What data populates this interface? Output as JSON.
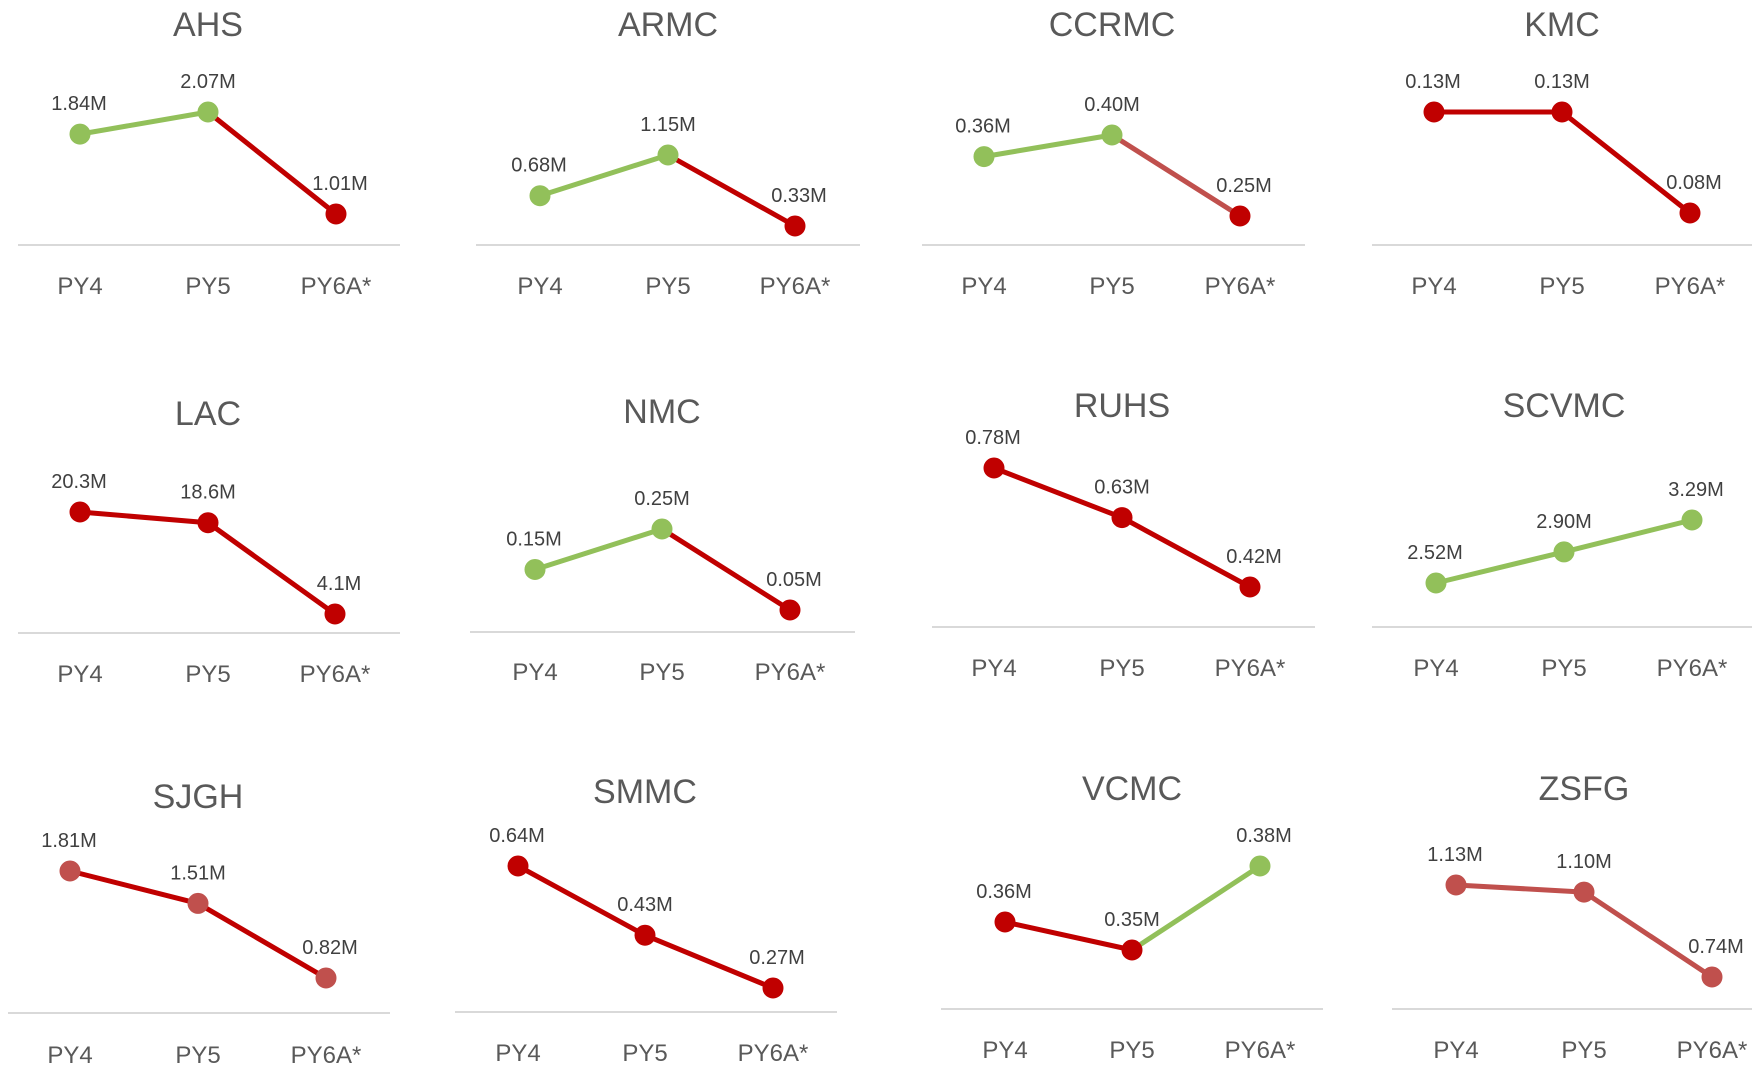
{
  "colors": {
    "up": "#92c05a",
    "down": "#c00000",
    "down_light": "#c0504d",
    "axis": "#d9d9d9",
    "text": "#595959"
  },
  "chart_data": [
    {
      "type": "line",
      "title": "AHS",
      "categories": [
        "PY4",
        "PY5",
        "PY6A*"
      ],
      "values": [
        1.84,
        2.07,
        1.01
      ],
      "labels": [
        "1.84M",
        "2.07M",
        "1.01M"
      ],
      "segment_colors": [
        "up",
        "down"
      ],
      "marker_colors": [
        "up",
        "up",
        "down"
      ]
    },
    {
      "type": "line",
      "title": "ARMC",
      "categories": [
        "PY4",
        "PY5",
        "PY6A*"
      ],
      "values": [
        0.68,
        1.15,
        0.33
      ],
      "labels": [
        "0.68M",
        "1.15M",
        "0.33M"
      ],
      "segment_colors": [
        "up",
        "down"
      ],
      "marker_colors": [
        "up",
        "up",
        "down"
      ]
    },
    {
      "type": "line",
      "title": "CCRMC",
      "categories": [
        "PY4",
        "PY5",
        "PY6A*"
      ],
      "values": [
        0.36,
        0.4,
        0.25
      ],
      "labels": [
        "0.36M",
        "0.40M",
        "0.25M"
      ],
      "segment_colors": [
        "up",
        "down_light"
      ],
      "marker_colors": [
        "up",
        "up",
        "down"
      ]
    },
    {
      "type": "line",
      "title": "KMC",
      "categories": [
        "PY4",
        "PY5",
        "PY6A*"
      ],
      "values": [
        0.13,
        0.13,
        0.08
      ],
      "labels": [
        "0.13M",
        "0.13M",
        "0.08M"
      ],
      "segment_colors": [
        "down",
        "down"
      ],
      "marker_colors": [
        "down",
        "down",
        "down"
      ]
    },
    {
      "type": "line",
      "title": "LAC",
      "categories": [
        "PY4",
        "PY5",
        "PY6A*"
      ],
      "values": [
        20.3,
        18.6,
        4.1
      ],
      "labels": [
        "20.3M",
        "18.6M",
        "4.1M"
      ],
      "segment_colors": [
        "down",
        "down"
      ],
      "marker_colors": [
        "down",
        "down",
        "down"
      ]
    },
    {
      "type": "line",
      "title": "NMC",
      "categories": [
        "PY4",
        "PY5",
        "PY6A*"
      ],
      "values": [
        0.15,
        0.25,
        0.05
      ],
      "labels": [
        "0.15M",
        "0.25M",
        "0.05M"
      ],
      "segment_colors": [
        "up",
        "down"
      ],
      "marker_colors": [
        "up",
        "up",
        "down"
      ]
    },
    {
      "type": "line",
      "title": "RUHS",
      "categories": [
        "PY4",
        "PY5",
        "PY6A*"
      ],
      "values": [
        0.78,
        0.63,
        0.42
      ],
      "labels": [
        "0.78M",
        "0.63M",
        "0.42M"
      ],
      "segment_colors": [
        "down",
        "down"
      ],
      "marker_colors": [
        "down",
        "down",
        "down"
      ]
    },
    {
      "type": "line",
      "title": "SCVMC",
      "categories": [
        "PY4",
        "PY5",
        "PY6A*"
      ],
      "values": [
        2.52,
        2.9,
        3.29
      ],
      "labels": [
        "2.52M",
        "2.90M",
        "3.29M"
      ],
      "segment_colors": [
        "up",
        "up"
      ],
      "marker_colors": [
        "up",
        "up",
        "up"
      ]
    },
    {
      "type": "line",
      "title": "SJGH",
      "categories": [
        "PY4",
        "PY5",
        "PY6A*"
      ],
      "values": [
        1.81,
        1.51,
        0.82
      ],
      "labels": [
        "1.81M",
        "1.51M",
        "0.82M"
      ],
      "segment_colors": [
        "down",
        "down"
      ],
      "marker_colors": [
        "down_light",
        "down_light",
        "down_light"
      ]
    },
    {
      "type": "line",
      "title": "SMMC",
      "categories": [
        "PY4",
        "PY5",
        "PY6A*"
      ],
      "values": [
        0.64,
        0.43,
        0.27
      ],
      "labels": [
        "0.64M",
        "0.43M",
        "0.27M"
      ],
      "segment_colors": [
        "down",
        "down"
      ],
      "marker_colors": [
        "down",
        "down",
        "down"
      ]
    },
    {
      "type": "line",
      "title": "VCMC",
      "categories": [
        "PY4",
        "PY5",
        "PY6A*"
      ],
      "values": [
        0.36,
        0.35,
        0.38
      ],
      "labels": [
        "0.36M",
        "0.35M",
        "0.38M"
      ],
      "segment_colors": [
        "down",
        "up"
      ],
      "marker_colors": [
        "down",
        "down",
        "up"
      ]
    },
    {
      "type": "line",
      "title": "ZSFG",
      "categories": [
        "PY4",
        "PY5",
        "PY6A*"
      ],
      "values": [
        1.13,
        1.1,
        0.74
      ],
      "labels": [
        "1.13M",
        "1.10M",
        "0.74M"
      ],
      "segment_colors": [
        "down_light",
        "down_light"
      ],
      "marker_colors": [
        "down_light",
        "down_light",
        "down_light"
      ]
    }
  ]
}
